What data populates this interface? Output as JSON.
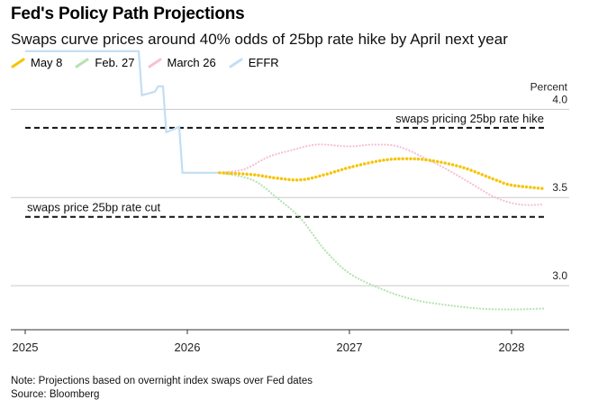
{
  "title": "Fed's Policy Path Projections",
  "subtitle": "Swaps curve prices around 40% odds of 25bp rate hike by April next year",
  "footer": {
    "note": "Note: Projections based on overnight index swaps over Fed dates",
    "source": "Source: Bloomberg"
  },
  "chart_data": {
    "type": "line",
    "title": "Fed's Policy Path Projections",
    "subtitle": "Swaps curve prices around 40% odds of 25bp rate hike by April next year",
    "ylabel": "Percent",
    "ylim": [
      2.75,
      4.15
    ],
    "xlim": [
      2025.0,
      2028.2
    ],
    "x_ticks": [
      {
        "value": 2025,
        "label": "2025"
      },
      {
        "value": 2026,
        "label": "2026"
      },
      {
        "value": 2027,
        "label": "2027"
      },
      {
        "value": 2028,
        "label": "2028"
      }
    ],
    "y_ticks": [
      {
        "value": 4.0,
        "label": "4.0"
      },
      {
        "value": 3.5,
        "label": "3.5"
      },
      {
        "value": 3.0,
        "label": "3.0"
      }
    ],
    "grid": true,
    "legend_position": "top-left",
    "reference_lines": [
      {
        "value": 3.895,
        "label": "swaps pricing 25bp rate hike"
      },
      {
        "value": 3.39,
        "label": "swaps price 25bp rate cut"
      }
    ],
    "series": [
      {
        "name": "May 8",
        "color": "#f5c400",
        "style": "dotted-bold",
        "points": [
          [
            2026.2,
            3.64
          ],
          [
            2026.4,
            3.63
          ],
          [
            2026.55,
            3.61
          ],
          [
            2026.7,
            3.6
          ],
          [
            2026.85,
            3.63
          ],
          [
            2027.0,
            3.67
          ],
          [
            2027.2,
            3.71
          ],
          [
            2027.35,
            3.72
          ],
          [
            2027.5,
            3.71
          ],
          [
            2027.7,
            3.67
          ],
          [
            2027.9,
            3.6
          ],
          [
            2028.0,
            3.57
          ],
          [
            2028.2,
            3.55
          ]
        ]
      },
      {
        "name": "Feb. 27",
        "color": "#b5e3b0",
        "style": "dotted",
        "points": [
          [
            2026.2,
            3.64
          ],
          [
            2026.4,
            3.6
          ],
          [
            2026.55,
            3.5
          ],
          [
            2026.7,
            3.38
          ],
          [
            2026.85,
            3.2
          ],
          [
            2027.0,
            3.07
          ],
          [
            2027.2,
            2.98
          ],
          [
            2027.4,
            2.92
          ],
          [
            2027.6,
            2.89
          ],
          [
            2027.8,
            2.87
          ],
          [
            2028.0,
            2.865
          ],
          [
            2028.2,
            2.87
          ]
        ]
      },
      {
        "name": "March 26",
        "color": "#f5c0d5",
        "style": "dotted",
        "points": [
          [
            2026.2,
            3.64
          ],
          [
            2026.35,
            3.66
          ],
          [
            2026.5,
            3.73
          ],
          [
            2026.65,
            3.77
          ],
          [
            2026.8,
            3.8
          ],
          [
            2027.0,
            3.79
          ],
          [
            2027.15,
            3.8
          ],
          [
            2027.3,
            3.79
          ],
          [
            2027.45,
            3.73
          ],
          [
            2027.6,
            3.66
          ],
          [
            2027.75,
            3.58
          ],
          [
            2027.9,
            3.5
          ],
          [
            2028.05,
            3.46
          ],
          [
            2028.2,
            3.46
          ]
        ]
      },
      {
        "name": "EFFR",
        "color": "#c2def4",
        "style": "solid-step",
        "points": [
          [
            2025.0,
            4.33
          ],
          [
            2025.7,
            4.33
          ],
          [
            2025.72,
            4.08
          ],
          [
            2025.8,
            4.1
          ],
          [
            2025.82,
            4.13
          ],
          [
            2025.85,
            4.13
          ],
          [
            2025.87,
            3.87
          ],
          [
            2025.95,
            3.9
          ],
          [
            2025.97,
            3.64
          ],
          [
            2026.2,
            3.64
          ]
        ]
      }
    ]
  }
}
